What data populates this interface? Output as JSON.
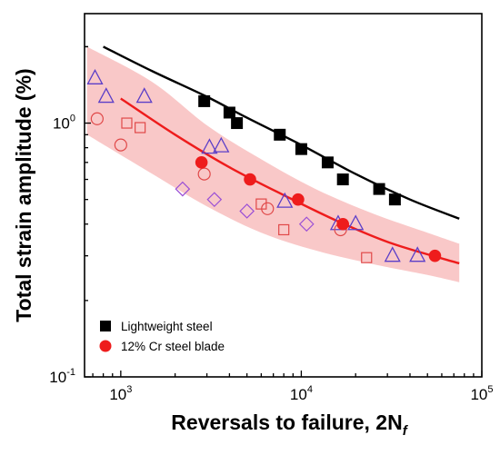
{
  "chart_data": {
    "type": "scatter",
    "x_scale": "log",
    "y_scale": "log",
    "xlim": [
      630,
      100000
    ],
    "ylim": [
      0.1,
      2.7
    ],
    "xlabel": "Reversals to failure, 2N",
    "xlabel_subscript": "f",
    "ylabel": "Total strain amplitude (%)",
    "x_ticks": [
      {
        "value": 1000,
        "base": "10",
        "exp": "3"
      },
      {
        "value": 10000,
        "base": "10",
        "exp": "4"
      },
      {
        "value": 100000,
        "base": "10",
        "exp": "5"
      }
    ],
    "y_ticks": [
      {
        "value": 0.1,
        "base": "10",
        "exp": "-1"
      },
      {
        "value": 1,
        "base": "10",
        "exp": "0"
      }
    ],
    "grid": false,
    "legend_position": "bottom-left",
    "legend": [
      {
        "label": "Lightweight steel",
        "marker": "filled-square",
        "color": "#000000"
      },
      {
        "label": "12% Cr steel blade",
        "marker": "filled-circle",
        "color": "#ee1c1c"
      }
    ],
    "series": [
      {
        "name": "Lightweight steel",
        "marker": "filled-square",
        "color": "#000000",
        "points": [
          {
            "x": 2900,
            "y": 1.22
          },
          {
            "x": 4000,
            "y": 1.1
          },
          {
            "x": 4400,
            "y": 1.0
          },
          {
            "x": 7600,
            "y": 0.9
          },
          {
            "x": 10000,
            "y": 0.79
          },
          {
            "x": 14000,
            "y": 0.7
          },
          {
            "x": 17000,
            "y": 0.6
          },
          {
            "x": 27000,
            "y": 0.55
          },
          {
            "x": 33000,
            "y": 0.5
          }
        ],
        "fit": [
          {
            "x": 800,
            "y": 2.0
          },
          {
            "x": 1500,
            "y": 1.6
          },
          {
            "x": 3000,
            "y": 1.27
          },
          {
            "x": 5000,
            "y": 1.05
          },
          {
            "x": 10000,
            "y": 0.82
          },
          {
            "x": 20000,
            "y": 0.63
          },
          {
            "x": 40000,
            "y": 0.5
          },
          {
            "x": 75000,
            "y": 0.42
          }
        ]
      },
      {
        "name": "12% Cr steel blade",
        "marker": "filled-circle",
        "color": "#ee1c1c",
        "points": [
          {
            "x": 2800,
            "y": 0.7
          },
          {
            "x": 5200,
            "y": 0.6
          },
          {
            "x": 9600,
            "y": 0.5
          },
          {
            "x": 17000,
            "y": 0.4
          },
          {
            "x": 55000,
            "y": 0.3
          }
        ],
        "fit": [
          {
            "x": 1000,
            "y": 1.25
          },
          {
            "x": 2000,
            "y": 0.9
          },
          {
            "x": 4000,
            "y": 0.67
          },
          {
            "x": 8000,
            "y": 0.52
          },
          {
            "x": 16000,
            "y": 0.41
          },
          {
            "x": 32000,
            "y": 0.335
          },
          {
            "x": 75000,
            "y": 0.28
          }
        ],
        "band_upper": [
          {
            "x": 650,
            "y": 2.0
          },
          {
            "x": 1500,
            "y": 1.45
          },
          {
            "x": 3000,
            "y": 0.98
          },
          {
            "x": 6000,
            "y": 0.72
          },
          {
            "x": 12000,
            "y": 0.55
          },
          {
            "x": 25000,
            "y": 0.44
          },
          {
            "x": 50000,
            "y": 0.37
          },
          {
            "x": 75000,
            "y": 0.335
          }
        ],
        "band_lower": [
          {
            "x": 650,
            "y": 0.9
          },
          {
            "x": 1500,
            "y": 0.63
          },
          {
            "x": 3000,
            "y": 0.47
          },
          {
            "x": 6000,
            "y": 0.37
          },
          {
            "x": 12000,
            "y": 0.315
          },
          {
            "x": 25000,
            "y": 0.278
          },
          {
            "x": 50000,
            "y": 0.252
          },
          {
            "x": 75000,
            "y": 0.236
          }
        ]
      },
      {
        "marker": "open-triangle",
        "color": "#5b3ec8",
        "points": [
          {
            "x": 720,
            "y": 1.5
          },
          {
            "x": 830,
            "y": 1.27
          },
          {
            "x": 1350,
            "y": 1.27
          },
          {
            "x": 3100,
            "y": 0.8
          },
          {
            "x": 3600,
            "y": 0.81
          },
          {
            "x": 8100,
            "y": 0.49
          },
          {
            "x": 16000,
            "y": 0.4
          },
          {
            "x": 20000,
            "y": 0.4
          },
          {
            "x": 32000,
            "y": 0.3
          },
          {
            "x": 44000,
            "y": 0.3
          }
        ]
      },
      {
        "marker": "open-square",
        "color": "#e04848",
        "points": [
          {
            "x": 1080,
            "y": 1.0
          },
          {
            "x": 1280,
            "y": 0.96
          },
          {
            "x": 6000,
            "y": 0.48
          },
          {
            "x": 8000,
            "y": 0.38
          },
          {
            "x": 23000,
            "y": 0.295
          }
        ]
      },
      {
        "marker": "open-circle",
        "color": "#e04848",
        "points": [
          {
            "x": 740,
            "y": 1.04
          },
          {
            "x": 1000,
            "y": 0.82
          },
          {
            "x": 2900,
            "y": 0.63
          },
          {
            "x": 6500,
            "y": 0.46
          },
          {
            "x": 16500,
            "y": 0.38
          }
        ]
      },
      {
        "marker": "open-diamond",
        "color": "#9a4fd6",
        "points": [
          {
            "x": 2200,
            "y": 0.55
          },
          {
            "x": 3300,
            "y": 0.5
          },
          {
            "x": 5000,
            "y": 0.45
          },
          {
            "x": 10700,
            "y": 0.4
          }
        ]
      }
    ]
  },
  "colors": {
    "band_fill": "#f9c8c8",
    "axis": "#000000"
  }
}
